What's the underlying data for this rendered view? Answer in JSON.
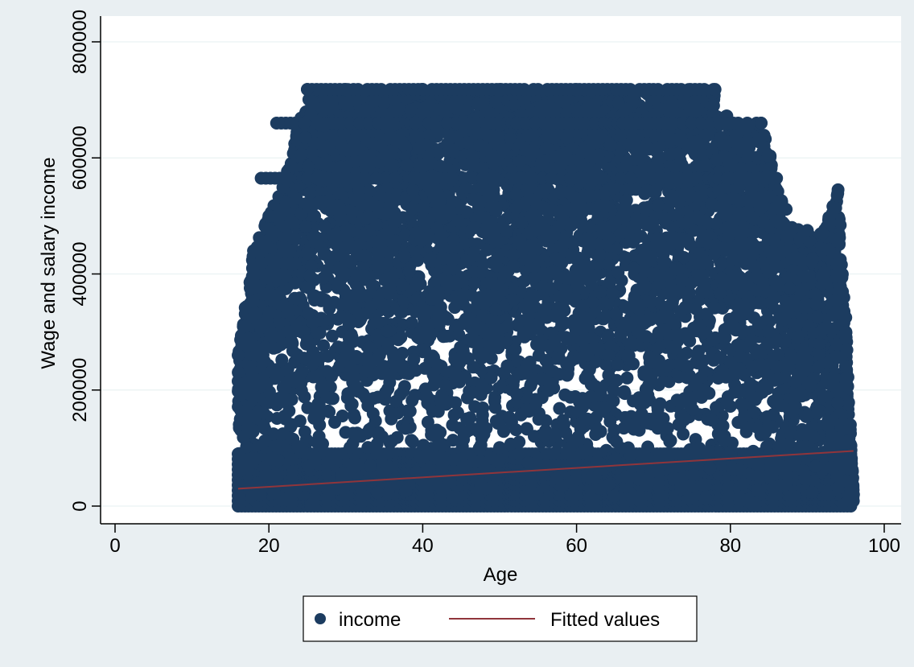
{
  "colors": {
    "outer_bg": "#e9eff2",
    "plot_bg": "#ffffff",
    "grid": "#eaf2f3",
    "marker": "#1c3c60",
    "fit_line": "#90353b",
    "axis": "#000000"
  },
  "chart_data": {
    "type": "scatter",
    "title": "",
    "xlabel": "Age",
    "ylabel": "Wage and salary income",
    "xlim": [
      0,
      100
    ],
    "ylim": [
      0,
      800000
    ],
    "x_ticks": [
      0,
      20,
      40,
      60,
      80,
      100
    ],
    "y_ticks": [
      0,
      200000,
      400000,
      600000,
      800000
    ],
    "x_tick_labels": [
      "0",
      "20",
      "40",
      "60",
      "80",
      "100"
    ],
    "y_tick_labels": [
      "0",
      "200000",
      "400000",
      "600000",
      "800000"
    ],
    "grid": "horizontal",
    "legend_position": "bottom",
    "series": [
      {
        "name": "income",
        "kind": "scatter",
        "marker": "circle",
        "description_x_range": [
          16,
          96
        ],
        "capped_values": [
          718000,
          660000,
          565000
        ],
        "envelope": [
          [
            16,
            260000
          ],
          [
            18,
            440000
          ],
          [
            20,
            500000
          ],
          [
            22,
            565000
          ],
          [
            25,
            718000
          ],
          [
            30,
            718000
          ],
          [
            40,
            718000
          ],
          [
            50,
            718000
          ],
          [
            60,
            718000
          ],
          [
            70,
            718000
          ],
          [
            78,
            718000
          ],
          [
            80,
            660000
          ],
          [
            84,
            660000
          ],
          [
            86,
            565000
          ],
          [
            88,
            480000
          ],
          [
            90,
            475000
          ],
          [
            92,
            470000
          ],
          [
            94,
            545000
          ],
          [
            95,
            325000
          ],
          [
            96,
            20000
          ]
        ]
      },
      {
        "name": "Fitted values",
        "kind": "line",
        "x": [
          16,
          96
        ],
        "y": [
          30000,
          95000
        ]
      }
    ]
  }
}
